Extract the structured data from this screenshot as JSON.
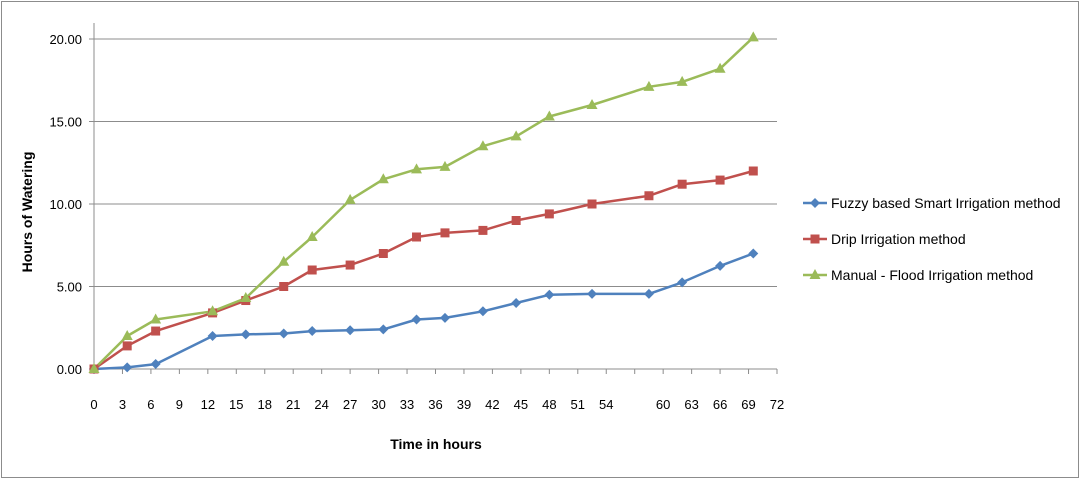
{
  "chart_data": {
    "type": "line",
    "title": "",
    "xlabel": "Time in hours",
    "ylabel": "Hours of Watering",
    "x_ticks": [
      0,
      3,
      6,
      9,
      12,
      15,
      18,
      21,
      24,
      27,
      30,
      33,
      36,
      39,
      42,
      45,
      48,
      51,
      54,
      57,
      60,
      63,
      66,
      69,
      72
    ],
    "x_ticks_shown": [
      0,
      3,
      6,
      9,
      12,
      15,
      18,
      21,
      24,
      27,
      30,
      33,
      36,
      39,
      42,
      45,
      48,
      51,
      54,
      60,
      63,
      66,
      69,
      72
    ],
    "x_labels": [
      "0",
      "3",
      "6",
      "9",
      "12",
      "15",
      "18",
      "21",
      "24",
      "27",
      "30",
      "33",
      "36",
      "39",
      "42",
      "45",
      "48",
      "51",
      "54",
      "60",
      "63",
      "66",
      "69",
      "72"
    ],
    "y_ticks": [
      0,
      5,
      10,
      15,
      20
    ],
    "y_labels": [
      "0.00",
      "5.00",
      "10.00",
      "15.00",
      "20.00"
    ],
    "xlim": [
      0,
      72
    ],
    "ylim": [
      0,
      20
    ],
    "grid": "horizontal",
    "legend": "right",
    "series": [
      {
        "name": "Fuzzy based Smart Irrigation method",
        "color": "#4f81bd",
        "marker": "diamond",
        "points": [
          [
            0,
            0
          ],
          [
            3.5,
            0.1
          ],
          [
            6.5,
            0.3
          ],
          [
            12.5,
            2.0
          ],
          [
            16,
            2.1
          ],
          [
            20,
            2.15
          ],
          [
            23,
            2.3
          ],
          [
            27,
            2.35
          ],
          [
            30.5,
            2.4
          ],
          [
            34,
            3.0
          ],
          [
            37,
            3.1
          ],
          [
            41,
            3.5
          ],
          [
            44.5,
            4.0
          ],
          [
            48,
            4.5
          ],
          [
            52.5,
            4.55
          ],
          [
            58.5,
            4.55
          ],
          [
            62,
            5.25
          ],
          [
            66,
            6.25
          ],
          [
            69.5,
            7.0
          ]
        ]
      },
      {
        "name": "Drip Irrigation method",
        "color": "#c0504d",
        "marker": "square",
        "points": [
          [
            0,
            0
          ],
          [
            3.5,
            1.4
          ],
          [
            6.5,
            2.3
          ],
          [
            12.5,
            3.4
          ],
          [
            16,
            4.15
          ],
          [
            20,
            5.0
          ],
          [
            23,
            6.0
          ],
          [
            27,
            6.3
          ],
          [
            30.5,
            7.0
          ],
          [
            34,
            8.0
          ],
          [
            37,
            8.25
          ],
          [
            41,
            8.4
          ],
          [
            44.5,
            9.0
          ],
          [
            48,
            9.4
          ],
          [
            52.5,
            10.0
          ],
          [
            58.5,
            10.5
          ],
          [
            62,
            11.2
          ],
          [
            66,
            11.45
          ],
          [
            69.5,
            12.0
          ]
        ]
      },
      {
        "name": "Manual - Flood Irrigation method",
        "color": "#9bbb59",
        "marker": "triangle",
        "points": [
          [
            0,
            0
          ],
          [
            3.5,
            2.0
          ],
          [
            6.5,
            3.0
          ],
          [
            12.5,
            3.5
          ],
          [
            16,
            4.3
          ],
          [
            20,
            6.5
          ],
          [
            23,
            8.0
          ],
          [
            27,
            10.25
          ],
          [
            30.5,
            11.5
          ],
          [
            34,
            12.1
          ],
          [
            37,
            12.25
          ],
          [
            41,
            13.5
          ],
          [
            44.5,
            14.1
          ],
          [
            48,
            15.3
          ],
          [
            52.5,
            16.0
          ],
          [
            58.5,
            17.1
          ],
          [
            62,
            17.4
          ],
          [
            66,
            18.2
          ],
          [
            69.5,
            20.1
          ]
        ]
      }
    ]
  }
}
